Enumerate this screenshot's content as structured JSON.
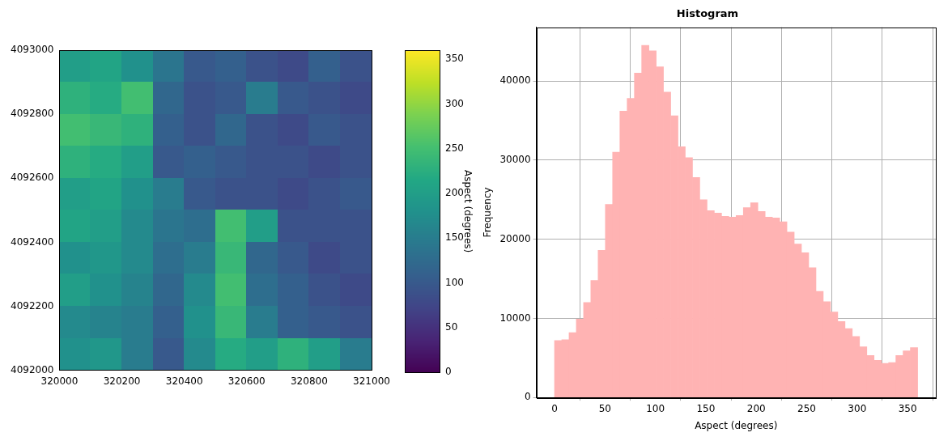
{
  "chart_data": [
    {
      "type": "heatmap",
      "xlim": [
        320000,
        321000
      ],
      "xticks": [
        320000,
        320200,
        320400,
        320600,
        320800,
        321000
      ],
      "ylim": [
        4092000,
        4093000
      ],
      "yticks": [
        4092000,
        4092200,
        4092400,
        4092600,
        4092800,
        4093000
      ],
      "color": "viridis",
      "cells": [
        [
          200,
          210,
          180,
          140,
          100,
          110,
          90,
          80,
          110,
          90
        ],
        [
          230,
          220,
          250,
          120,
          90,
          100,
          150,
          100,
          90,
          80
        ],
        [
          250,
          240,
          230,
          110,
          90,
          120,
          90,
          80,
          100,
          90
        ],
        [
          230,
          220,
          200,
          100,
          110,
          100,
          90,
          90,
          80,
          90
        ],
        [
          200,
          210,
          180,
          150,
          100,
          90,
          90,
          80,
          90,
          100
        ],
        [
          210,
          200,
          170,
          140,
          130,
          250,
          200,
          90,
          90,
          90
        ],
        [
          180,
          190,
          170,
          130,
          150,
          240,
          120,
          100,
          80,
          90
        ],
        [
          200,
          180,
          160,
          120,
          170,
          250,
          130,
          110,
          90,
          80
        ],
        [
          170,
          160,
          150,
          110,
          180,
          240,
          150,
          110,
          100,
          90
        ],
        [
          180,
          190,
          150,
          100,
          170,
          220,
          200,
          230,
          200,
          150
        ]
      ],
      "colorbar": {
        "label": "Aspect (degrees)",
        "range": [
          0,
          360
        ],
        "ticks": [
          0,
          50,
          100,
          150,
          200,
          250,
          300,
          350
        ]
      }
    },
    {
      "type": "histogram",
      "title": "Histogram",
      "x_label": "Aspect (degrees)",
      "y_label": "Frequency",
      "bins": [
        0,
        7.2,
        14.4,
        21.6,
        28.8,
        36,
        43.2,
        50.4,
        57.6,
        64.8,
        72,
        79.2,
        86.4,
        93.6,
        100.8,
        108,
        115.2,
        122.4,
        129.6,
        136.8,
        144,
        151.2,
        158.4,
        165.6,
        172.8,
        180,
        187.2,
        194.4,
        201.6,
        208.8,
        216,
        223.2,
        230.4,
        237.6,
        244.8,
        252,
        259.2,
        266.4,
        273.6,
        280.8,
        288,
        295.2,
        302.4,
        309.6,
        316.8,
        324,
        331.2,
        338.4,
        345.6,
        352.8,
        360
      ],
      "values": [
        7200,
        7300,
        8200,
        9900,
        12000,
        14800,
        18600,
        24400,
        31000,
        36200,
        37800,
        41000,
        44500,
        43800,
        41800,
        38600,
        35600,
        31700,
        30300,
        27800,
        25000,
        23600,
        23300,
        22900,
        22800,
        23000,
        24000,
        24600,
        23500,
        22800,
        22700,
        22200,
        20900,
        19400,
        18300,
        16400,
        13400,
        12100,
        10800,
        9600,
        8700,
        7700,
        6400,
        5300,
        4700,
        4300,
        4400,
        5300,
        5900,
        6300
      ],
      "color": "#ffb3b3",
      "xlim": [
        -18,
        378
      ],
      "xticks": [
        0,
        50,
        100,
        150,
        200,
        250,
        300,
        350
      ],
      "ylim": [
        0,
        46800
      ],
      "yticks": [
        0,
        10000,
        20000,
        30000,
        40000
      ],
      "grid": true
    }
  ]
}
